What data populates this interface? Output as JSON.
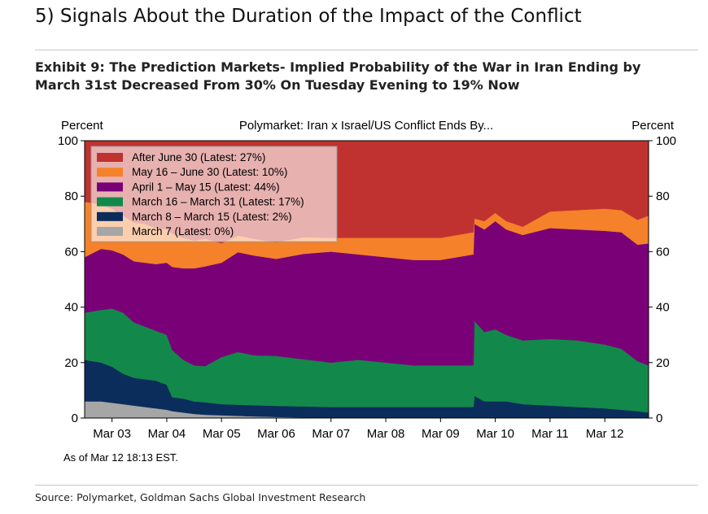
{
  "section_title": "5) Signals About the Duration of the Impact of the Conflict",
  "exhibit_title": "Exhibit 9: The Prediction Markets- Implied Probability of the War in Iran Ending by March 31st Decreased From 30% On Tuesday Evening to 19% Now",
  "source": "Source: Polymarket, Goldman Sachs Global Investment Research",
  "chart_data": {
    "type": "area",
    "stacked": true,
    "title": "Polymarket: Iran x Israel/US Conflict Ends By...",
    "ylabel_left": "Percent",
    "ylabel_right": "Percent",
    "ylim": [
      0,
      100
    ],
    "yticks": [
      0,
      20,
      40,
      60,
      80,
      100
    ],
    "xlim": [
      2.5,
      12.8
    ],
    "xticks": [
      {
        "value": 3,
        "label": "Mar 03"
      },
      {
        "value": 4,
        "label": "Mar 04"
      },
      {
        "value": 5,
        "label": "Mar 05"
      },
      {
        "value": 6,
        "label": "Mar 06"
      },
      {
        "value": 7,
        "label": "Mar 07"
      },
      {
        "value": 8,
        "label": "Mar 08"
      },
      {
        "value": 9,
        "label": "Mar 09"
      },
      {
        "value": 10,
        "label": "Mar 10"
      },
      {
        "value": 11,
        "label": "Mar 11"
      },
      {
        "value": 12,
        "label": "Mar 12"
      }
    ],
    "note": "As of Mar 12 18:13 EST.",
    "legend_position": "top-left",
    "x": [
      2.5,
      2.8,
      3.0,
      3.2,
      3.4,
      3.6,
      3.8,
      4.0,
      4.1,
      4.3,
      4.5,
      4.7,
      5.0,
      5.3,
      5.6,
      6.0,
      6.5,
      7.0,
      7.5,
      8.0,
      8.5,
      9.0,
      9.3,
      9.6,
      9.62,
      9.8,
      10.0,
      10.2,
      10.5,
      11.0,
      11.5,
      12.0,
      12.3,
      12.6,
      12.8
    ],
    "series": [
      {
        "name": "March 7",
        "legend": "March 7 (Latest: 0%)",
        "color": "#a6a6a6",
        "values": [
          6,
          6,
          5.5,
          5,
          4.5,
          4,
          3.5,
          3,
          2.5,
          2,
          1.5,
          1.2,
          1,
          0.8,
          0.6,
          0.4,
          0.2,
          0,
          0,
          0,
          0,
          0,
          0,
          0,
          0,
          0,
          0,
          0,
          0,
          0,
          0,
          0,
          0,
          0,
          0
        ]
      },
      {
        "name": "March 8 – March 15",
        "legend": "March 8 – March 15 (Latest: 2%)",
        "color": "#0b2d5b",
        "values": [
          15,
          14,
          13,
          11,
          10,
          10,
          10,
          9,
          5,
          5,
          4.5,
          4.5,
          4,
          4,
          4,
          4,
          4,
          4,
          4,
          4,
          4,
          4,
          4,
          4,
          8,
          6,
          6,
          6,
          5,
          4.5,
          4,
          3.5,
          3,
          2.5,
          2
        ]
      },
      {
        "name": "March 16 – March 31",
        "legend": "March 16 – March 31 (Latest: 17%)",
        "color": "#12894a",
        "values": [
          17,
          19,
          21,
          22,
          20,
          19,
          18,
          18,
          17,
          14,
          13,
          13,
          17,
          19,
          18,
          18,
          17,
          16,
          17,
          16,
          15,
          15,
          15,
          15,
          27,
          25,
          26,
          24,
          23,
          24,
          24,
          23,
          22,
          18,
          17
        ]
      },
      {
        "name": "April 1 – May 15",
        "legend": "April 1 – May 15 (Latest: 44%)",
        "color": "#7a0078",
        "values": [
          20,
          22,
          21,
          21,
          22,
          23,
          24,
          26,
          30,
          33,
          35,
          36,
          34,
          36,
          36,
          35,
          38,
          40,
          38,
          38,
          38,
          38,
          39,
          40,
          35,
          37,
          39,
          38,
          38,
          40,
          40,
          41,
          42,
          42,
          44
        ]
      },
      {
        "name": "May 16 – June 30",
        "legend": "May 16 – June 30 (Latest: 10%)",
        "color": "#f5812a",
        "values": [
          20,
          16,
          15,
          14,
          14,
          14,
          13,
          12,
          12,
          11,
          10,
          10,
          7,
          6,
          6,
          6,
          6,
          5,
          6,
          7,
          8,
          8,
          8,
          8,
          2,
          3,
          3,
          3,
          3,
          6,
          7,
          8,
          8,
          9,
          10
        ]
      },
      {
        "name": "After June 30",
        "legend": "After June 30 (Latest: 27%)",
        "color": "#c0322f",
        "values": [
          22,
          23,
          24.5,
          27,
          29.5,
          30,
          31.5,
          32,
          33.5,
          35,
          36,
          35.3,
          37,
          34.2,
          35.4,
          36.6,
          34.8,
          35,
          35,
          35,
          35,
          35,
          34,
          33,
          28,
          29,
          26,
          29,
          31,
          25.5,
          25,
          24.5,
          25,
          28.5,
          27
        ]
      }
    ]
  }
}
